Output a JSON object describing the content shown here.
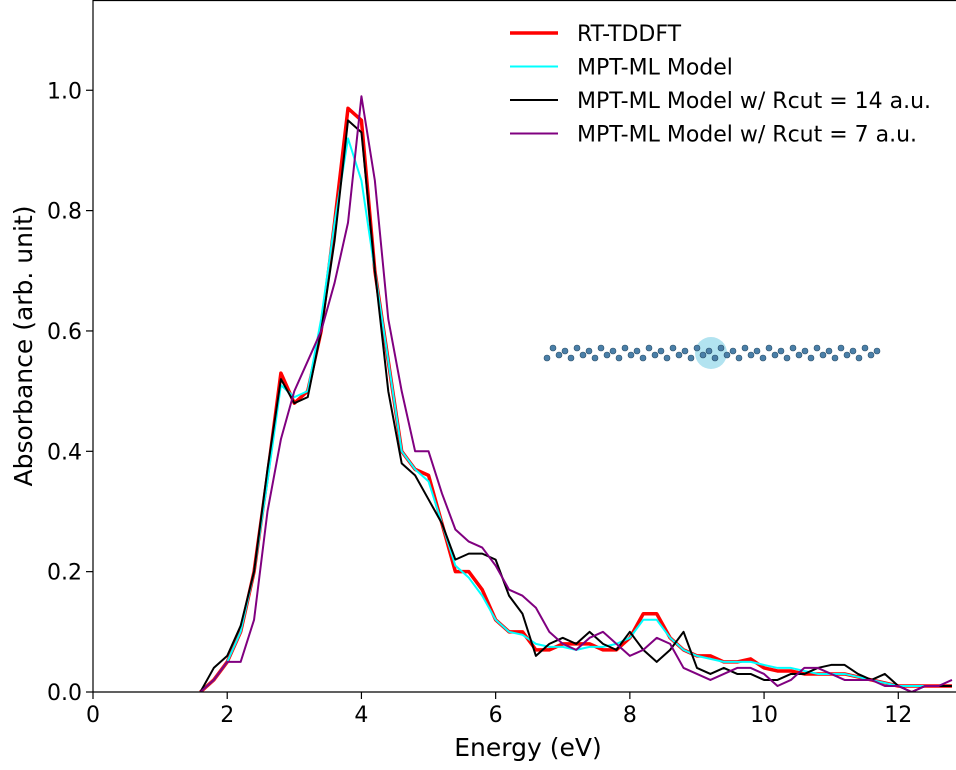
{
  "chart_data": {
    "type": "line",
    "xlabel": "Energy (eV)",
    "ylabel": "Absorbance (arb. unit)",
    "xlim": [
      0,
      12.86
    ],
    "ylim": [
      0,
      1.15
    ],
    "xticks": [
      0,
      2,
      4,
      6,
      8,
      10,
      12
    ],
    "yticks": [
      {
        "value": 0,
        "label": "0.0"
      },
      {
        "value": 0.2,
        "label": "0.2"
      },
      {
        "value": 0.4,
        "label": "0.4"
      },
      {
        "value": 0.6,
        "label": "0.6"
      },
      {
        "value": 0.8,
        "label": "0.8"
      },
      {
        "value": 1.0,
        "label": "1.0"
      }
    ],
    "legend": "upper right",
    "x": [
      1.6,
      1.8,
      2.0,
      2.2,
      2.4,
      2.6,
      2.8,
      3.0,
      3.2,
      3.4,
      3.6,
      3.8,
      4.0,
      4.2,
      4.4,
      4.6,
      4.8,
      5.0,
      5.2,
      5.4,
      5.6,
      5.8,
      6.0,
      6.2,
      6.4,
      6.6,
      6.8,
      7.0,
      7.2,
      7.4,
      7.6,
      7.8,
      8.0,
      8.2,
      8.4,
      8.6,
      8.8,
      9.0,
      9.2,
      9.4,
      9.6,
      9.8,
      10.0,
      10.2,
      10.4,
      10.6,
      10.8,
      11.0,
      11.2,
      11.4,
      11.6,
      11.8,
      12.0,
      12.2,
      12.4,
      12.6,
      12.8
    ],
    "series": [
      {
        "name": "RT-TDDFT",
        "color": "#ff0000",
        "width": 3.5,
        "values": [
          0,
          0.02,
          0.05,
          0.1,
          0.2,
          0.36,
          0.53,
          0.48,
          0.5,
          0.6,
          0.78,
          0.97,
          0.95,
          0.7,
          0.55,
          0.4,
          0.37,
          0.36,
          0.28,
          0.2,
          0.2,
          0.17,
          0.12,
          0.1,
          0.1,
          0.07,
          0.07,
          0.08,
          0.08,
          0.08,
          0.07,
          0.07,
          0.09,
          0.13,
          0.13,
          0.09,
          0.07,
          0.06,
          0.06,
          0.05,
          0.05,
          0.055,
          0.04,
          0.035,
          0.035,
          0.03,
          0.03,
          0.03,
          0.03,
          0.025,
          0.02,
          0.015,
          0.01,
          0.01,
          0.01,
          0.01,
          0.01
        ]
      },
      {
        "name": "MPT-ML Model",
        "color": "#00ffff",
        "width": 2,
        "values": [
          0,
          0.02,
          0.05,
          0.1,
          0.2,
          0.35,
          0.51,
          0.49,
          0.5,
          0.62,
          0.78,
          0.92,
          0.85,
          0.7,
          0.55,
          0.4,
          0.37,
          0.35,
          0.28,
          0.21,
          0.19,
          0.16,
          0.12,
          0.1,
          0.095,
          0.08,
          0.075,
          0.075,
          0.07,
          0.075,
          0.075,
          0.08,
          0.09,
          0.12,
          0.12,
          0.09,
          0.07,
          0.06,
          0.055,
          0.05,
          0.05,
          0.05,
          0.045,
          0.04,
          0.04,
          0.035,
          0.03,
          0.03,
          0.03,
          0.025,
          0.02,
          0.015,
          0.01,
          0.01,
          0.01,
          0.01,
          0.01
        ]
      },
      {
        "name": "MPT-ML Model w/ Rcut = 14 a.u.",
        "color": "#000000",
        "width": 2,
        "values": [
          0,
          0.04,
          0.06,
          0.11,
          0.2,
          0.37,
          0.52,
          0.48,
          0.49,
          0.6,
          0.75,
          0.95,
          0.93,
          0.7,
          0.5,
          0.38,
          0.36,
          0.32,
          0.28,
          0.22,
          0.23,
          0.23,
          0.22,
          0.16,
          0.13,
          0.06,
          0.08,
          0.09,
          0.08,
          0.1,
          0.08,
          0.07,
          0.1,
          0.07,
          0.05,
          0.07,
          0.1,
          0.04,
          0.03,
          0.04,
          0.03,
          0.03,
          0.02,
          0.02,
          0.03,
          0.03,
          0.04,
          0.045,
          0.045,
          0.03,
          0.02,
          0.03,
          0.01,
          0,
          0.01,
          0.01,
          0.01
        ]
      },
      {
        "name": "MPT-ML Model w/ Rcut = 7 a.u.",
        "color": "#800080",
        "width": 2,
        "values": [
          0,
          0.02,
          0.05,
          0.05,
          0.12,
          0.3,
          0.42,
          0.5,
          0.55,
          0.6,
          0.68,
          0.78,
          0.99,
          0.85,
          0.62,
          0.5,
          0.4,
          0.4,
          0.33,
          0.27,
          0.25,
          0.24,
          0.21,
          0.17,
          0.16,
          0.14,
          0.1,
          0.08,
          0.07,
          0.09,
          0.1,
          0.08,
          0.06,
          0.07,
          0.09,
          0.08,
          0.04,
          0.03,
          0.02,
          0.03,
          0.04,
          0.04,
          0.03,
          0.01,
          0.02,
          0.04,
          0.04,
          0.03,
          0.02,
          0.02,
          0.02,
          0.01,
          0.01,
          0,
          0.01,
          0.01,
          0.02
        ]
      }
    ]
  }
}
